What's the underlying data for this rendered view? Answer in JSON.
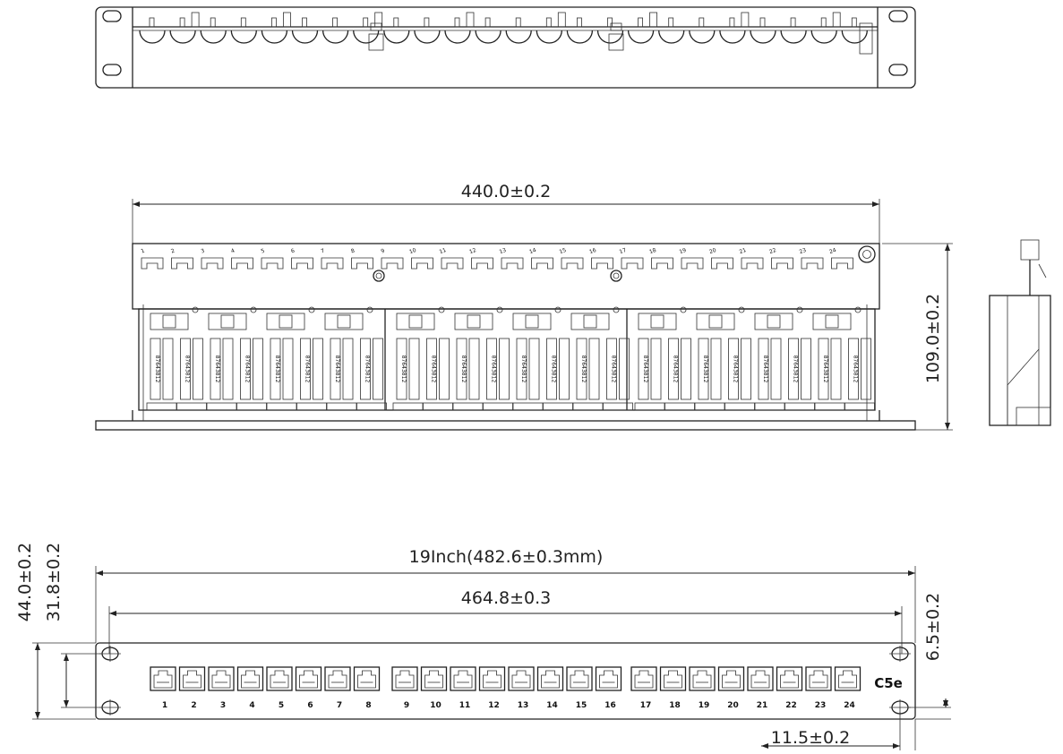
{
  "top_view": {},
  "middle_view": {
    "width_dim": "440.0±0.2",
    "height_dim": "109.0±0.2",
    "port_numbers": [
      1,
      2,
      3,
      4,
      5,
      6,
      7,
      8,
      9,
      10,
      11,
      12,
      13,
      14,
      15,
      16,
      17,
      18,
      19,
      20,
      21,
      22,
      23,
      24
    ],
    "pin_label": "87643812"
  },
  "front_view": {
    "overall_width_dim": "19Inch(482.6±0.3mm)",
    "hole_spacing_dim": "464.8±0.3",
    "height_dim": "44.0±0.2",
    "hole_height_dim": "31.8±0.2",
    "hole_offset_dim": "6.5±0.2",
    "hole_edge_dim": "11.5±0.2",
    "category": "C5e",
    "port_numbers": [
      1,
      2,
      3,
      4,
      5,
      6,
      7,
      8,
      9,
      10,
      11,
      12,
      13,
      14,
      15,
      16,
      17,
      18,
      19,
      20,
      21,
      22,
      23,
      24
    ]
  }
}
